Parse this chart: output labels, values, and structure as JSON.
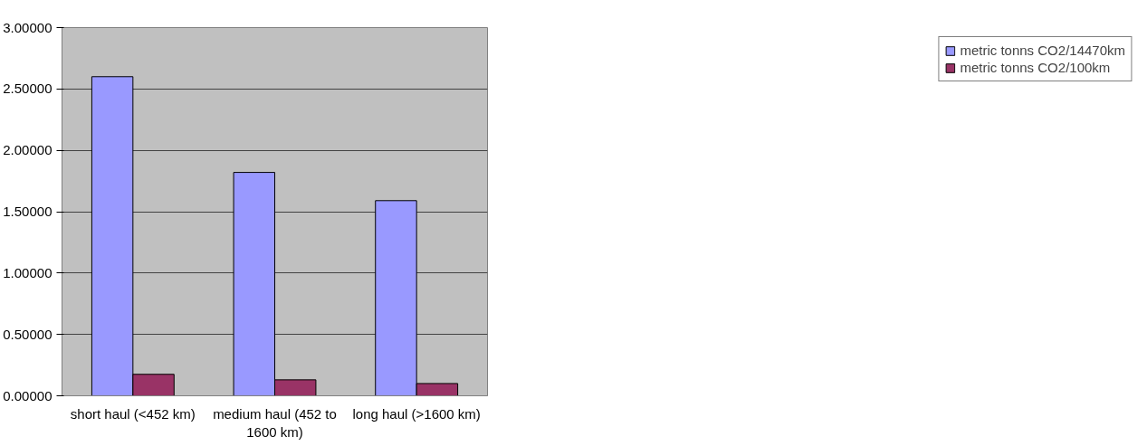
{
  "chart_data": {
    "type": "bar",
    "categories": [
      "short haul (<452 km)",
      "medium haul (452 to 1600 km)",
      "long haul (>1600 km)"
    ],
    "series": [
      {
        "name": "metric tonns CO2/14470km",
        "color": "#9999ff",
        "values": [
          2.6,
          1.82,
          1.59
        ]
      },
      {
        "name": "metric tonns CO2/100km",
        "color": "#993366",
        "values": [
          0.175,
          0.13,
          0.1
        ]
      }
    ],
    "ylim": [
      0,
      3
    ],
    "yticks": [
      {
        "value": 0,
        "label": "0.00000"
      },
      {
        "value": 0.5,
        "label": "0.50000"
      },
      {
        "value": 1,
        "label": "1.00000"
      },
      {
        "value": 1.5,
        "label": "1.50000"
      },
      {
        "value": 2,
        "label": "2.00000"
      },
      {
        "value": 2.5,
        "label": "2.50000"
      },
      {
        "value": 3,
        "label": "3.00000"
      }
    ],
    "grid": "y",
    "legend": "right"
  }
}
